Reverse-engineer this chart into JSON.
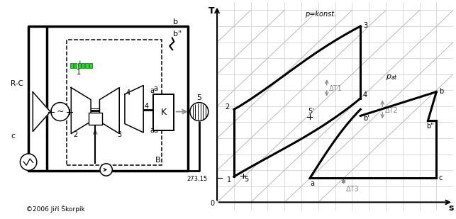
{
  "background_color": "#ffffff",
  "copyright": "©2006 Jiří Škorpík",
  "grid_color": "#cccccc",
  "diag_color": "#bbbbbb",
  "curve_color": "#000000",
  "arrow_color": "#888888",
  "green_color": "#00cc00"
}
